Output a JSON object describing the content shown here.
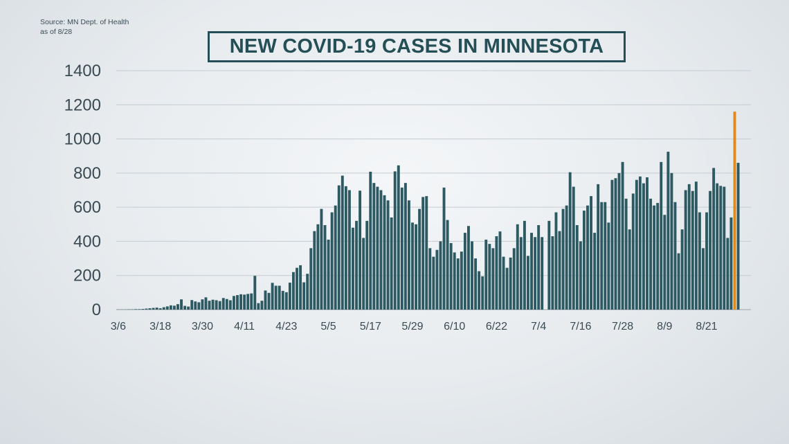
{
  "source": {
    "line1": "Source: MN Dept. of Health",
    "line2": "as of 8/28"
  },
  "chart_data": {
    "type": "bar",
    "title": "NEW COVID-19 CASES IN MINNESOTA",
    "xlabel": "",
    "ylabel": "",
    "ylim": [
      0,
      1400
    ],
    "yticks": [
      0,
      200,
      400,
      600,
      800,
      1000,
      1200,
      1400
    ],
    "xtick_labels": [
      "3/6",
      "3/18",
      "3/30",
      "4/11",
      "4/23",
      "5/5",
      "5/17",
      "5/29",
      "6/10",
      "6/22",
      "7/4",
      "7/16",
      "7/28",
      "8/9",
      "8/21"
    ],
    "xtick_interval_days": 12,
    "grid": "horizontal",
    "start_date": "3/6",
    "highlight_color": "#e08a1e",
    "bar_color": "#2d5a62",
    "values": [
      1,
      1,
      1,
      2,
      2,
      3,
      3,
      4,
      6,
      8,
      10,
      12,
      8,
      14,
      19,
      25,
      23,
      32,
      60,
      22,
      18,
      56,
      48,
      43,
      60,
      72,
      52,
      58,
      55,
      50,
      68,
      62,
      55,
      80,
      85,
      90,
      88,
      92,
      95,
      198,
      38,
      52,
      112,
      98,
      157,
      140,
      140,
      110,
      102,
      158,
      220,
      245,
      260,
      160,
      210,
      360,
      460,
      500,
      590,
      495,
      410,
      570,
      610,
      728,
      785,
      723,
      700,
      480,
      520,
      697,
      420,
      520,
      808,
      742,
      720,
      700,
      670,
      640,
      540,
      810,
      845,
      715,
      742,
      640,
      510,
      500,
      590,
      660,
      665,
      360,
      310,
      350,
      400,
      715,
      525,
      390,
      335,
      300,
      340,
      450,
      490,
      400,
      300,
      225,
      195,
      410,
      385,
      360,
      430,
      458,
      310,
      245,
      305,
      360,
      500,
      425,
      520,
      315,
      450,
      425,
      495,
      425,
      0,
      520,
      430,
      570,
      460,
      590,
      610,
      805,
      720,
      495,
      400,
      580,
      610,
      665,
      450,
      735,
      630,
      630,
      510,
      760,
      770,
      800,
      865,
      650,
      470,
      680,
      760,
      780,
      740,
      775,
      650,
      610,
      625,
      865,
      555,
      925,
      800,
      630,
      330,
      470,
      700,
      735,
      695,
      750,
      570,
      360,
      570,
      695,
      830,
      740,
      725,
      720,
      420,
      540,
      1160,
      860
    ]
  }
}
